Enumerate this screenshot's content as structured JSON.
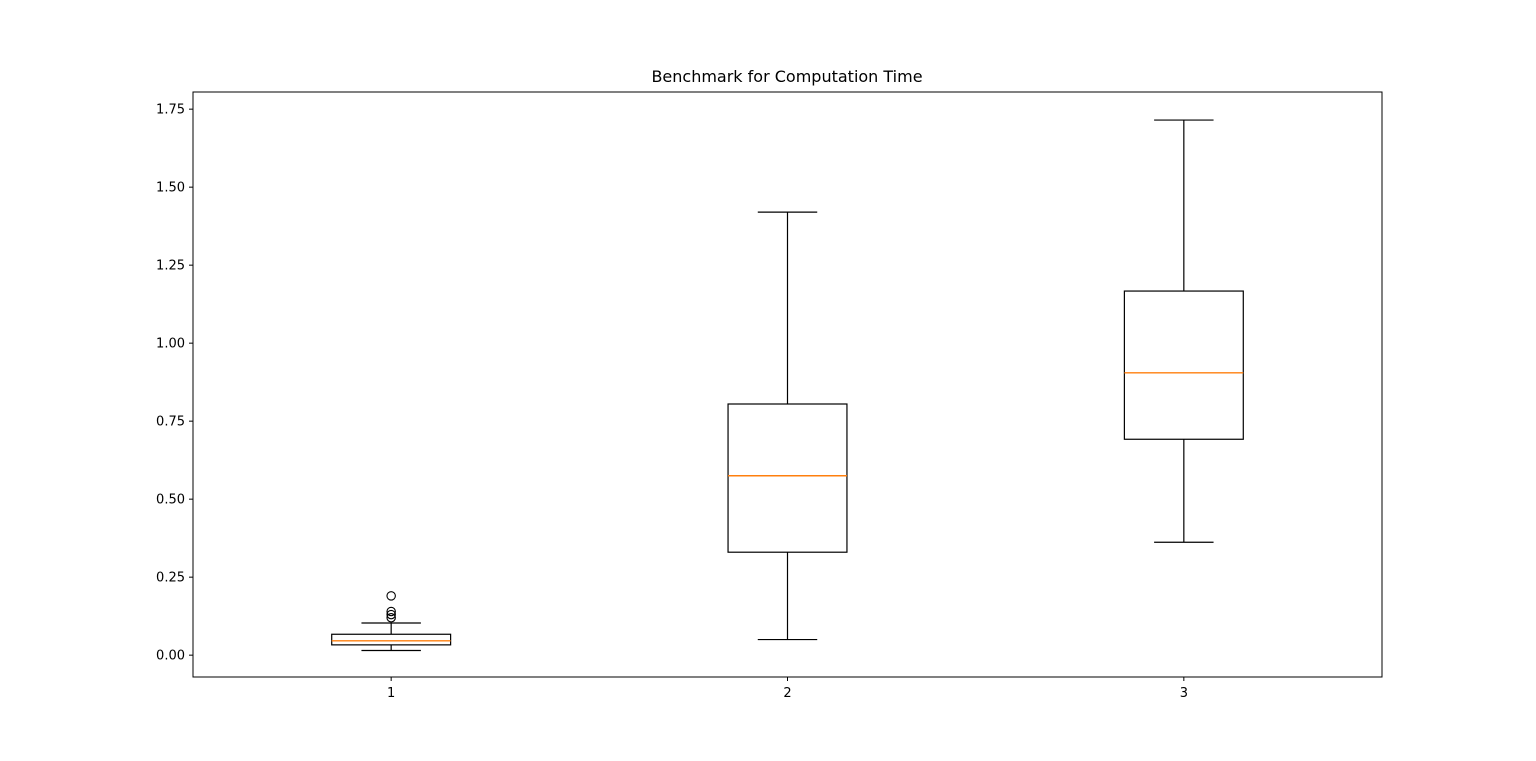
{
  "chart_data": {
    "type": "box",
    "title": "Benchmark for Computation Time",
    "xlabel": "",
    "ylabel": "",
    "categories": [
      "1",
      "2",
      "3"
    ],
    "ylim": [
      -0.07,
      1.805
    ],
    "yticks": [
      0.0,
      0.25,
      0.5,
      0.75,
      1.0,
      1.25,
      1.5,
      1.75
    ],
    "ytick_labels": [
      "0.00",
      "0.25",
      "0.50",
      "0.75",
      "1.00",
      "1.25",
      "1.50",
      "1.75"
    ],
    "grid": false,
    "colors": {
      "box": "#000000",
      "median": "#ff7f0e",
      "outlier": "#000000"
    },
    "boxes": [
      {
        "category": "1",
        "whisker_low": 0.015,
        "q1": 0.033,
        "median": 0.046,
        "q3": 0.067,
        "whisker_high": 0.103,
        "outliers": [
          0.12,
          0.13,
          0.14,
          0.19
        ]
      },
      {
        "category": "2",
        "whisker_low": 0.05,
        "q1": 0.33,
        "median": 0.575,
        "q3": 0.805,
        "whisker_high": 1.42,
        "outliers": []
      },
      {
        "category": "3",
        "whisker_low": 0.362,
        "q1": 0.692,
        "median": 0.905,
        "q3": 1.167,
        "whisker_high": 1.715,
        "outliers": []
      }
    ]
  }
}
